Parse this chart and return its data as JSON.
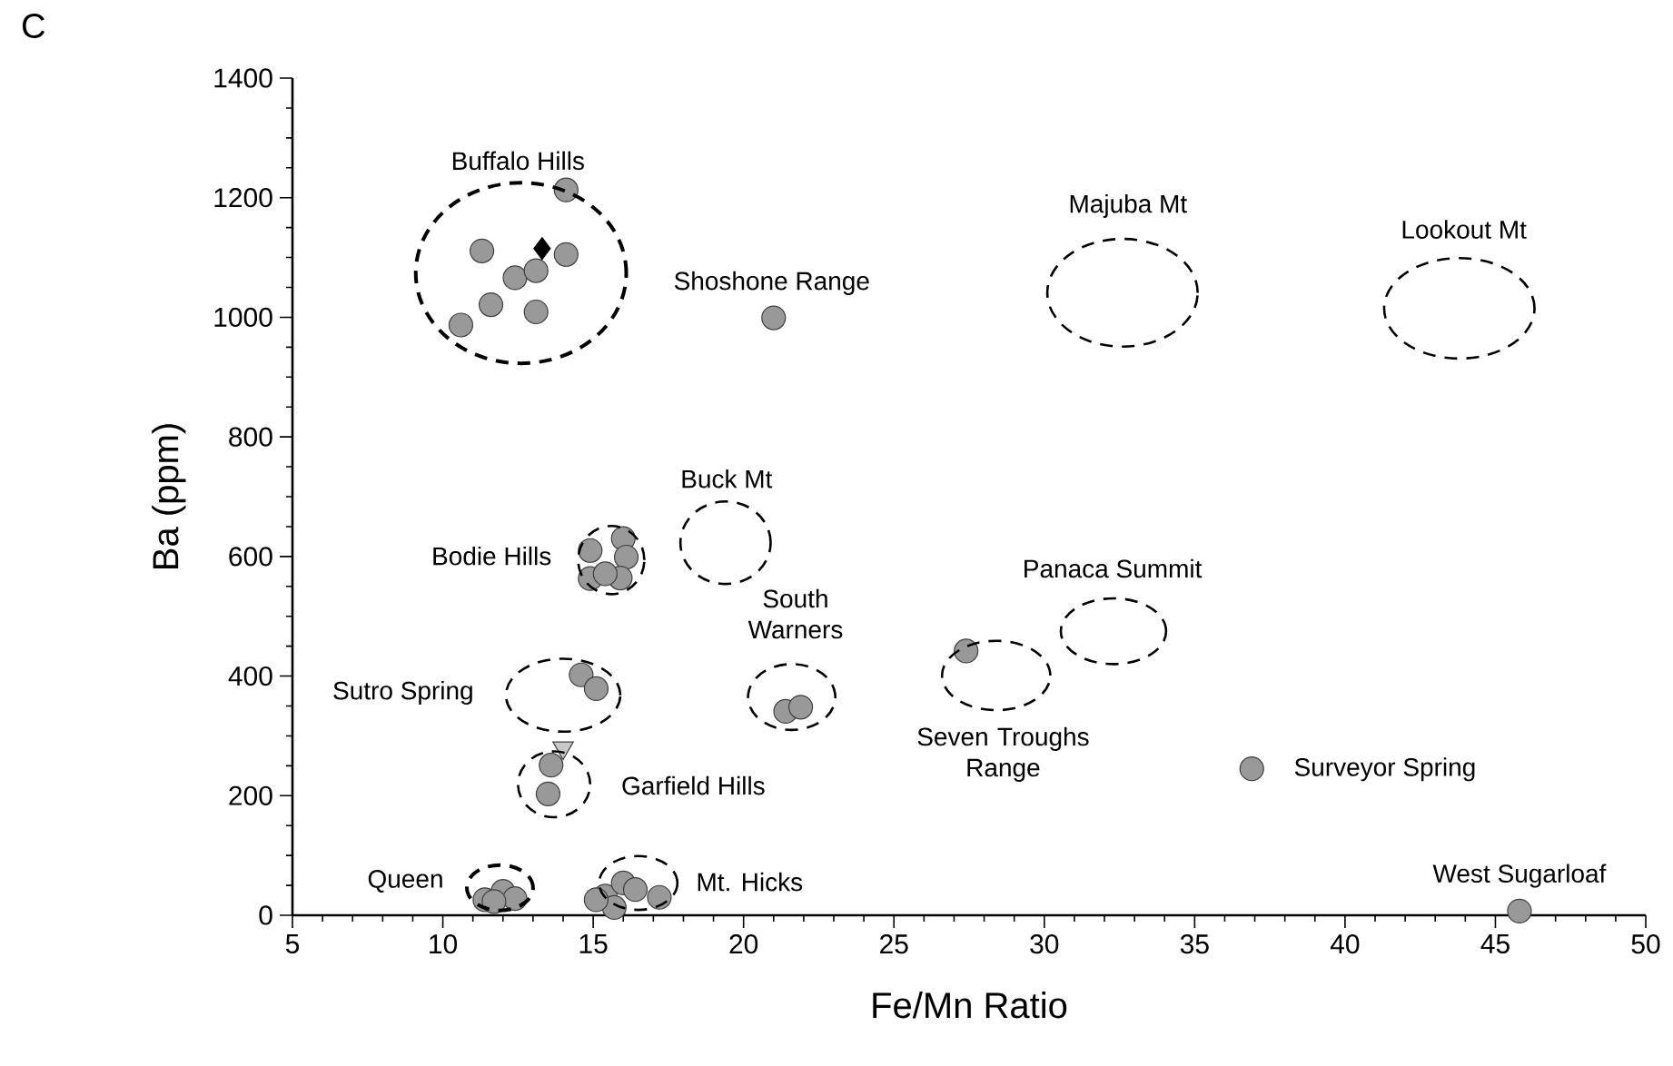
{
  "chart_data": {
    "type": "scatter",
    "xlabel": "Fe/Mn Ratio",
    "ylabel": "Ba (ppm)",
    "xlim": [
      5,
      50
    ],
    "ylim": [
      0,
      1400
    ],
    "xticks": [
      5,
      10,
      15,
      20,
      25,
      30,
      35,
      40,
      45,
      50
    ],
    "yticks": [
      0,
      200,
      400,
      600,
      800,
      1000,
      1200,
      1400
    ],
    "series": [
      {
        "marker": "circle",
        "color": "#999999",
        "x": [
          14.1,
          11.3,
          14.1,
          12.4,
          13.1,
          11.6,
          13.1,
          10.6,
          21.0,
          16.0,
          14.9,
          16.1,
          14.9,
          15.9,
          15.4,
          14.6,
          15.1,
          21.4,
          21.9,
          13.6,
          13.5,
          12.0,
          11.4,
          12.4,
          11.7,
          15.4,
          15.7,
          16.0,
          16.4,
          17.2,
          15.1,
          27.4,
          36.9,
          45.8
        ],
        "values": [
          1213,
          1111,
          1105,
          1066,
          1078,
          1021,
          1009,
          987,
          999,
          630,
          610,
          599,
          563,
          564,
          571,
          402,
          379,
          341,
          348,
          251,
          203,
          40,
          26,
          28,
          23,
          32,
          13,
          54,
          43,
          30,
          26,
          442,
          245,
          7
        ]
      },
      {
        "marker": "diamond",
        "color": "#000000",
        "x": [
          13.3
        ],
        "values": [
          1115
        ]
      },
      {
        "marker": "triangle",
        "color": "#c8c8c8",
        "x": [
          14.0
        ],
        "values": [
          280
        ]
      }
    ],
    "annotations": [
      "C",
      "Buffalo Hills",
      "Shoshone Range",
      "Majuba Mt",
      "Lookout Mt",
      "Buck Mt",
      "Bodie Hills",
      "South Warners",
      "Sutro Spring",
      "Garfield Hills",
      "Seven Troughs Range",
      "Panaca Summit",
      "Surveyor Spring",
      "West Sugarloaf",
      "Queen",
      "Mt. Hicks"
    ]
  }
}
